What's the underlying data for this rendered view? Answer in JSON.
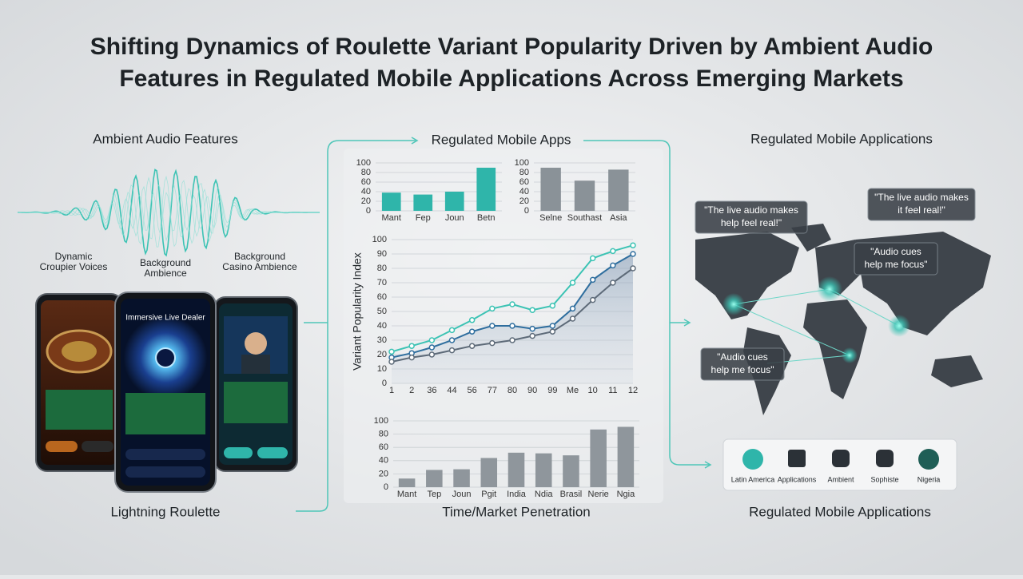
{
  "title_lines": [
    "Shifting Dynamics of Roulette Variant Popularity Driven by Ambient Audio",
    "Features in Regulated Mobile Applications Across Emerging Markets"
  ],
  "left_panel": {
    "heading": "Ambient Audio Features",
    "labels": [
      "Dynamic Croupier Voices",
      "Background Ambience",
      "Background Casino Ambience"
    ],
    "phone_text": "Immersive Live Dealer",
    "caption": "Lightning Roulette"
  },
  "center_panel": {
    "heading": "Regulated Mobile Apps"
  },
  "chart_data": [
    {
      "type": "bar",
      "categories": [
        "Mant",
        "Fep",
        "Joun",
        "Betn"
      ],
      "values": [
        38,
        34,
        40,
        90
      ],
      "color": "#2fb5aa",
      "ylim": [
        0,
        100
      ],
      "yticks": [
        0,
        20,
        40,
        60,
        80,
        100
      ],
      "grid": true
    },
    {
      "type": "bar",
      "categories": [
        "Selne",
        "Southast",
        "Asia"
      ],
      "values": [
        90,
        63,
        86
      ],
      "color": "#8a9298",
      "ylim": [
        0,
        100
      ],
      "yticks": [
        0,
        20,
        40,
        60,
        80,
        100
      ],
      "grid": true
    },
    {
      "type": "line",
      "y_label": "Variant Popularity Index",
      "categories": [
        "1",
        "2",
        "36",
        "44",
        "56",
        "77",
        "80",
        "90",
        "99",
        "Me",
        "10",
        "11",
        "12"
      ],
      "series": [
        {
          "color": "#3cc3b4",
          "values": [
            22,
            26,
            30,
            37,
            44,
            52,
            55,
            51,
            54,
            70,
            87,
            92,
            96
          ]
        },
        {
          "color": "#2f6e9e",
          "values": [
            18,
            21,
            25,
            30,
            36,
            40,
            40,
            38,
            40,
            52,
            72,
            82,
            90
          ]
        },
        {
          "color": "#5d6a78",
          "values": [
            15,
            18,
            20,
            23,
            26,
            28,
            30,
            33,
            36,
            45,
            58,
            70,
            80
          ]
        }
      ],
      "ylim": [
        0,
        100
      ],
      "yticks": [
        0,
        10,
        20,
        30,
        40,
        50,
        60,
        70,
        80,
        90,
        100
      ],
      "grid": true
    },
    {
      "type": "bar",
      "x_label": "Time/Market Penetration",
      "categories": [
        "Mant",
        "Tep",
        "Joun",
        "Pgit",
        "India",
        "Ndia",
        "Brasil",
        "Nerie",
        "Ngia"
      ],
      "values": [
        13,
        26,
        27,
        44,
        52,
        51,
        48,
        87,
        91
      ],
      "color": "#8f969c",
      "ylim": [
        0,
        100
      ],
      "yticks": [
        0,
        20,
        40,
        60,
        80,
        100
      ],
      "grid": true
    }
  ],
  "right_panel": {
    "heading": "Regulated Mobile Applications",
    "quotes": [
      {
        "lines": [
          "\"The live audio makes",
          "help feel real!\""
        ]
      },
      {
        "lines": [
          "\"The live audio makes",
          "it feel real!\""
        ]
      },
      {
        "lines": [
          "\"Audio cues",
          "help me focus\""
        ]
      },
      {
        "lines": [
          "\"Audio cues",
          "help me focus\""
        ]
      }
    ],
    "icons": [
      "Latin America",
      "Applications",
      "Ambient",
      "Sophiste",
      "Nigeria"
    ],
    "caption": "Regulated Mobile Applications"
  }
}
